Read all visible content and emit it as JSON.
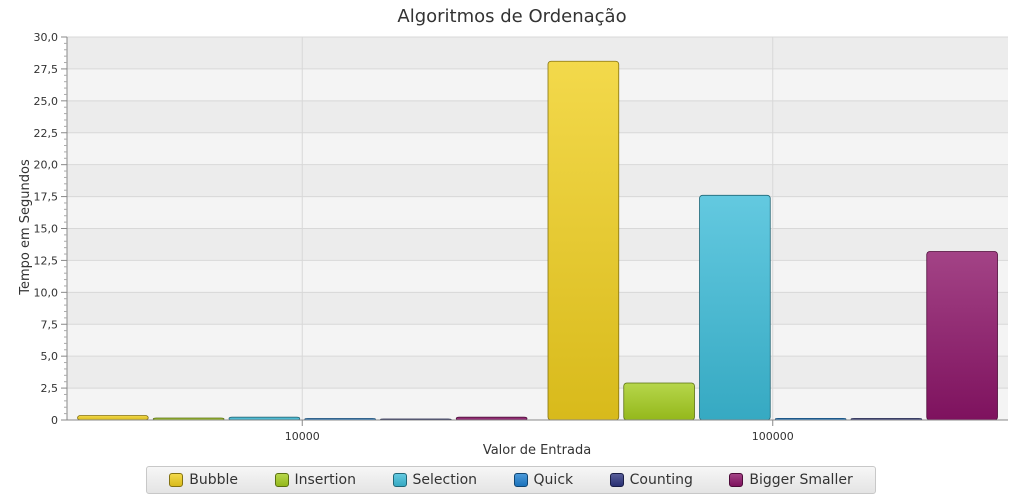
{
  "chart_data": {
    "type": "bar",
    "title": "Algoritmos de Ordenação",
    "xlabel": "Valor de Entrada",
    "ylabel": "Tempo em Segundos",
    "categories": [
      "10000",
      "100000"
    ],
    "ylim": [
      0,
      30
    ],
    "yticks": [
      "0",
      "2,5",
      "5,0",
      "7,5",
      "10,0",
      "12,5",
      "15,0",
      "17,5",
      "20,0",
      "22,5",
      "25,0",
      "27,5",
      "30,0"
    ],
    "ytick_values": [
      0,
      2.5,
      5,
      7.5,
      10,
      12.5,
      15,
      17.5,
      20,
      22.5,
      25,
      27.5,
      30
    ],
    "grid": true,
    "legend_position": "bottom",
    "series": [
      {
        "name": "Bubble",
        "color": "#f0cf1e",
        "values": [
          0.35,
          28.1
        ]
      },
      {
        "name": "Insertion",
        "color": "#a4cc1e",
        "values": [
          0.15,
          2.9
        ]
      },
      {
        "name": "Selection",
        "color": "#3cbcd8",
        "values": [
          0.22,
          17.6
        ]
      },
      {
        "name": "Quick",
        "color": "#1e7fd0",
        "values": [
          0.12,
          0.13
        ]
      },
      {
        "name": "Counting",
        "color": "#2e3580",
        "values": [
          0.05,
          0.12
        ]
      },
      {
        "name": "Bigger Smaller",
        "color": "#8c1468",
        "values": [
          0.22,
          13.2
        ]
      }
    ]
  }
}
